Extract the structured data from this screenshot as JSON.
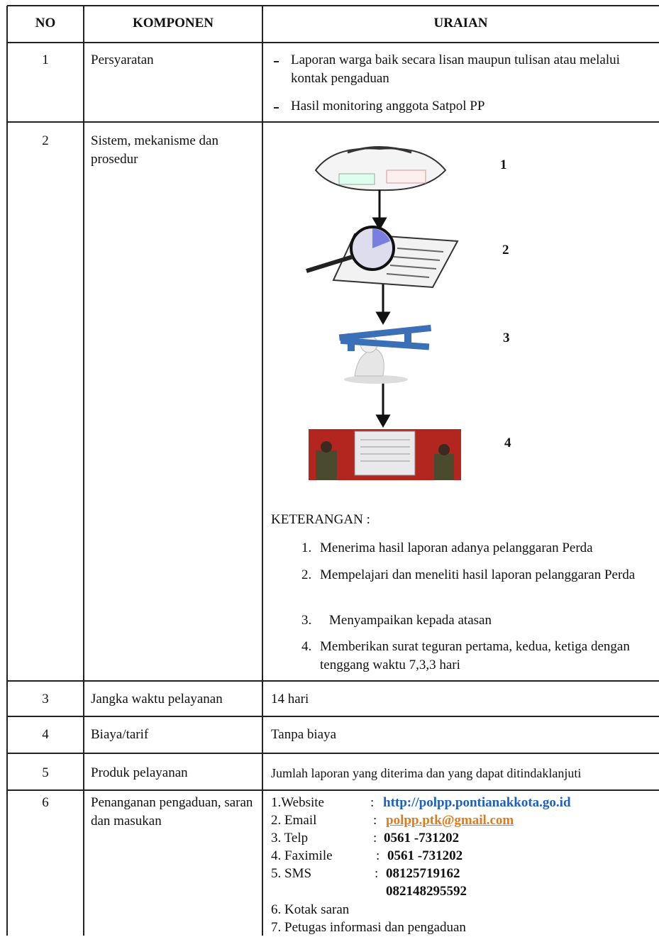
{
  "table": {
    "header": [
      "NO",
      "KOMPONEN",
      "URAIAN"
    ],
    "rows": [
      {
        "no": "1",
        "komponen": "Persyaratan",
        "items": [
          "Laporan warga baik secara lisan maupun tulisan atau melalui kontak pengaduan",
          "Hasil monitoring anggota Satpol PP"
        ]
      },
      {
        "no": "2",
        "komponen": "Sistem, mekanisme dan prosedur",
        "steps": [
          "1",
          "2",
          "3",
          "4"
        ],
        "notes_title": "KETERANGAN :",
        "notes": [
          {
            "number": "1.",
            "text": "Menerima hasil laporan adanya pelanggaran Perda"
          },
          {
            "number": "2.",
            "text": "Mempelajari dan meneliti hasil laporan pelanggaran Perda"
          },
          {
            "number": "3.",
            "text": "Menyampaikan kepada atasan"
          },
          {
            "number": "4.",
            "text": "Memberikan surat teguran pertama, kedua, ketiga dengan tenggang waktu 7,3,3 hari"
          }
        ]
      },
      {
        "no": "3",
        "komponen": "Jangka waktu pelayanan",
        "uraian": "14 hari"
      },
      {
        "no": "4",
        "komponen": "Biaya/tarif",
        "uraian": "Tanpa biaya"
      },
      {
        "no": "5",
        "komponen": "Produk pelayanan",
        "uraian": "Jumlah laporan yang diterima dan yang dapat ditindaklanjuti"
      },
      {
        "no": "6",
        "komponen": "Penanganan pengaduan, saran dan masukan",
        "contacts": [
          {
            "label": "1.Website",
            "separator": ":",
            "value": "http://polpp.pontianakkota.go.id"
          },
          {
            "label": "2. Email",
            "separator": ":",
            "value": "polpp.ptk@gmail.com"
          },
          {
            "label": "3. Telp",
            "separator": ":",
            "value": "0561 -731202"
          },
          {
            "label": "4. Faximile",
            "separator": ":",
            "value": "0561 -731202"
          },
          {
            "label": "5. SMS",
            "separator": ":",
            "value": "08125719162"
          }
        ],
        "extra_sms": "082148295592",
        "others": [
          "6. Kotak saran",
          "7. Petugas informasi dan pengaduan"
        ]
      }
    ]
  }
}
